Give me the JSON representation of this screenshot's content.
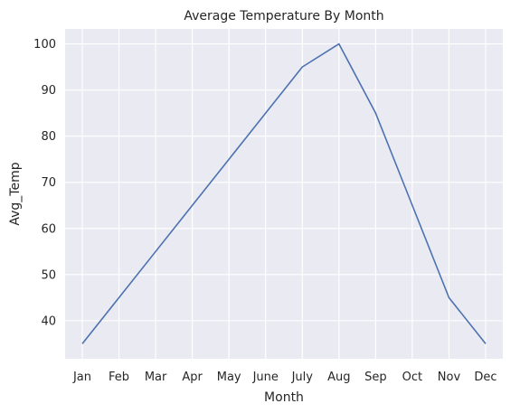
{
  "chart_data": {
    "type": "line",
    "title": "Average Temperature By Month",
    "xlabel": "Month",
    "ylabel": "Avg_Temp",
    "categories": [
      "Jan",
      "Feb",
      "Mar",
      "Apr",
      "May",
      "June",
      "July",
      "Aug",
      "Sep",
      "Oct",
      "Nov",
      "Dec"
    ],
    "series": [
      {
        "values": [
          35,
          45,
          55,
          65,
          75,
          85,
          95,
          100,
          85,
          65,
          45,
          35
        ],
        "color": "#4c72b0"
      }
    ],
    "ylim": [
      31.75,
      103.25
    ],
    "yticks": [
      40,
      50,
      60,
      70,
      80,
      90,
      100
    ],
    "grid": true,
    "legend": "none",
    "background": "#eaeaf2"
  }
}
